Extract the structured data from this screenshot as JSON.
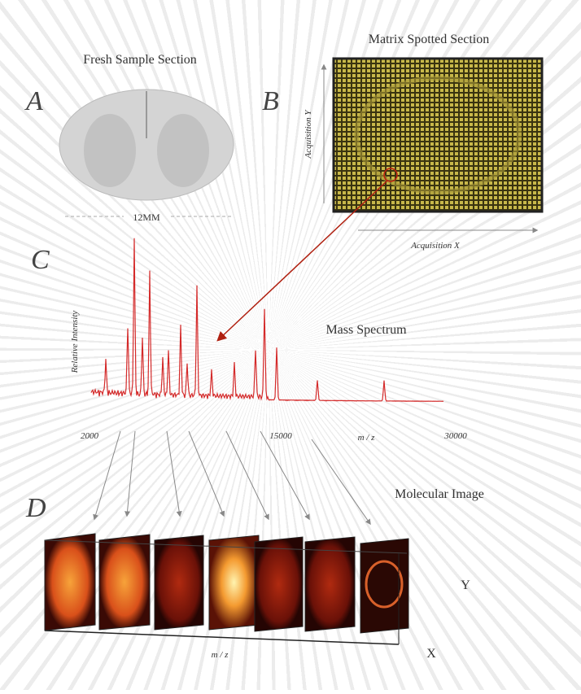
{
  "panels": {
    "a": {
      "letter": "A",
      "title": "Fresh Sample Section",
      "scale": "12MM"
    },
    "b": {
      "letter": "B",
      "title": "Matrix Spotted Section",
      "axis_y": "Acquisition Y",
      "axis_x": "Acquisition X"
    },
    "c": {
      "letter": "C",
      "title": "Mass Spectrum",
      "y_label": "Relative Intensity",
      "x_ticks": [
        "2000",
        "15000",
        "30000"
      ],
      "x_label": "m / z"
    },
    "d": {
      "letter": "D",
      "title": "Molecular Image",
      "axis_y": "Y",
      "axis_x": "X",
      "axis_z": "m / z"
    }
  }
}
